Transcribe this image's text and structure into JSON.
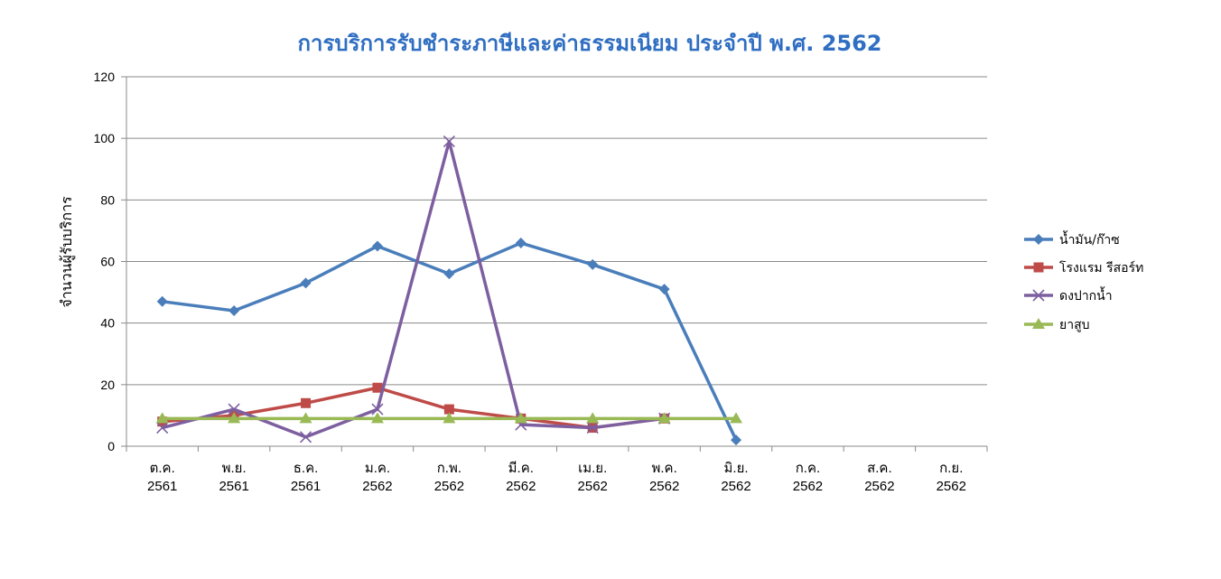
{
  "chart_data": {
    "type": "line",
    "title": "การบริการรับชำระภาษีและค่าธรรมเนียม ประจำปี พ.ศ. 2562",
    "xlabel": "",
    "ylabel": "จำนวนผู้รับบริการ",
    "ylim": [
      0,
      120
    ],
    "yticks": [
      0,
      20,
      40,
      60,
      80,
      100,
      120
    ],
    "grid": true,
    "legend_position": "right",
    "categories": [
      [
        "ต.ค.",
        "2561"
      ],
      [
        "พ.ย.",
        "2561"
      ],
      [
        "ธ.ค.",
        "2561"
      ],
      [
        "ม.ค.",
        "2562"
      ],
      [
        "ก.พ.",
        "2562"
      ],
      [
        "มี.ค.",
        "2562"
      ],
      [
        "เม.ย.",
        "2562"
      ],
      [
        "พ.ค.",
        "2562"
      ],
      [
        "มิ.ย.",
        "2562"
      ],
      [
        "ก.ค.",
        "2562"
      ],
      [
        "ส.ค.",
        "2562"
      ],
      [
        "ก.ย.",
        "2562"
      ]
    ],
    "series": [
      {
        "name": "น้ำมัน/ก๊าซ",
        "color": "#4a7ebb",
        "marker": "diamond",
        "values": [
          47,
          44,
          53,
          65,
          56,
          66,
          59,
          51,
          2,
          null,
          null,
          null
        ]
      },
      {
        "name": "โรงแรม รีสอร์ท",
        "color": "#be4b48",
        "marker": "square",
        "values": [
          8,
          10,
          14,
          19,
          12,
          9,
          6,
          9,
          null,
          null,
          null,
          null
        ]
      },
      {
        "name": "ดงปากน้ำ",
        "color": "#7d5fa0",
        "marker": "x",
        "values": [
          6,
          12,
          3,
          12,
          99,
          7,
          6,
          9,
          null,
          null,
          null,
          null
        ]
      },
      {
        "name": "ยาสูบ",
        "color": "#98b954",
        "marker": "triangle",
        "values": [
          9,
          9,
          9,
          9,
          9,
          9,
          9,
          9,
          9,
          null,
          null,
          null
        ]
      }
    ]
  }
}
